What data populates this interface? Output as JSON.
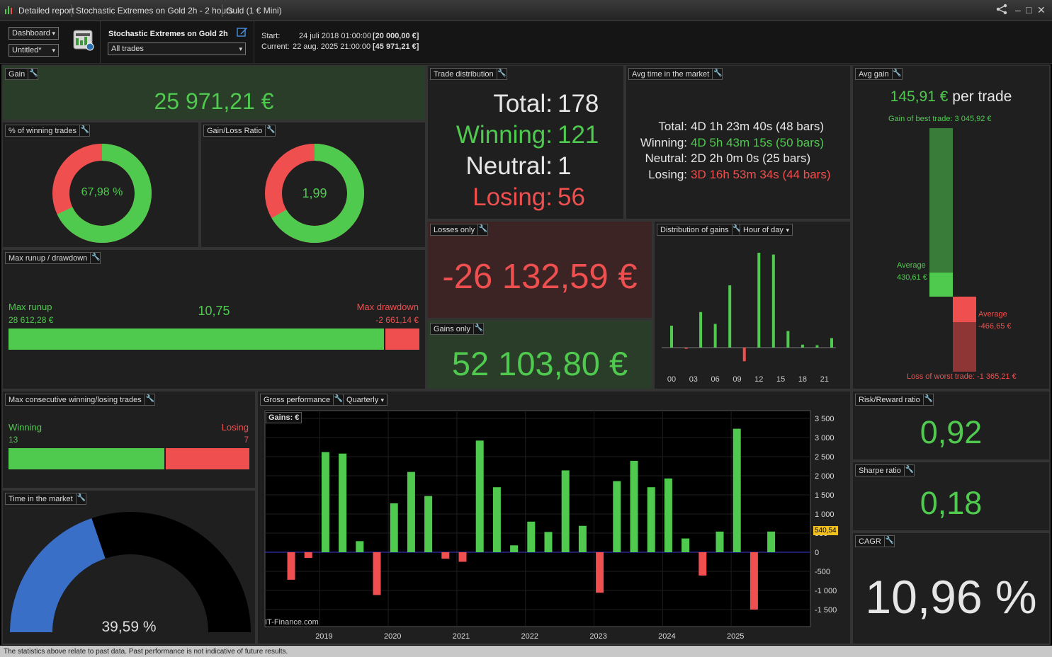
{
  "titlebar": {
    "tabs": [
      "Detailed report",
      "Stochastic Extremes on Gold 2h - 2 hours",
      "Guld (1 € Mini)"
    ],
    "icons": [
      "chart-app-icon",
      "share-icon",
      "minimize-icon",
      "maximize-icon",
      "close-icon"
    ]
  },
  "toolbar": {
    "view_select": "Dashboard",
    "layout_select": "Untitled*",
    "strategy_name": "Stochastic Extremes on Gold 2h",
    "trades_filter": "All trades",
    "start_label": "Start:",
    "start_date": "24 juli 2018 01:00:00",
    "start_value": "[20 000,00 €]",
    "current_label": "Current:",
    "current_date": "22 aug. 2025 21:00:00",
    "current_value": "[45 971,21 €]"
  },
  "gain": {
    "title": "Gain",
    "value": "25 971,21 €"
  },
  "winning_pct": {
    "title": "% of winning trades",
    "value": "67,98 %",
    "fraction": 0.6798
  },
  "gain_loss_ratio": {
    "title": "Gain/Loss Ratio",
    "value": "1,99",
    "fraction": 0.6656
  },
  "trade_distribution": {
    "title": "Trade distribution",
    "rows": [
      {
        "label": "Total:",
        "value": "178"
      },
      {
        "label": "Winning:",
        "value": "121"
      },
      {
        "label": "Neutral:",
        "value": "1"
      },
      {
        "label": "Losing:",
        "value": "56"
      }
    ]
  },
  "avg_time": {
    "title": "Avg time in the market",
    "rows": [
      {
        "label": "Total:",
        "value": "4D 1h 23m 40s (48 bars)"
      },
      {
        "label": "Winning:",
        "value": "4D 5h 43m 15s (50 bars)"
      },
      {
        "label": "Neutral:",
        "value": "2D 2h 0m 0s (25 bars)"
      },
      {
        "label": "Losing:",
        "value": "3D 16h 53m 34s (44 bars)"
      }
    ]
  },
  "avg_gain": {
    "title": "Avg gain",
    "value": "145,91 €",
    "suffix": "per trade",
    "best_label": "Gain of best trade: 3 045,92 €",
    "worst_label": "Loss of worst trade: -1 365,21 €",
    "avg_win_label": "Average",
    "avg_win_value": "430,61 €",
    "avg_loss_label": "Average",
    "avg_loss_value": "-466,65 €",
    "best": 3045.92,
    "avg_win": 430.61,
    "avg_loss": -466.65,
    "worst": -1365.21
  },
  "max_runup": {
    "title": "Max runup / drawdown",
    "runup_label": "Max runup",
    "runup_value": "28 612,28 €",
    "ratio": "10,75",
    "drawdown_label": "Max drawdown",
    "drawdown_value": "-2 661,14 €",
    "runup": 28612.28,
    "drawdown": 2661.14
  },
  "losses_only": {
    "title": "Losses only",
    "value": "-26 132,59 €"
  },
  "gains_only": {
    "title": "Gains only",
    "value": "52 103,80 €"
  },
  "distribution": {
    "title": "Distribution of gains",
    "mode_select": "Hour of day"
  },
  "max_consecutive": {
    "title": "Max consecutive winning/losing trades",
    "winning_label": "Winning",
    "winning_value": "13",
    "losing_label": "Losing",
    "losing_value": "7",
    "winning": 13,
    "losing": 7
  },
  "time_in_market": {
    "title": "Time in the market",
    "value": "39,59 %",
    "fraction": 0.3959
  },
  "gross_performance": {
    "title": "Gross performance",
    "period_select": "Quarterly",
    "gains_tag": "Gains: €",
    "watermark": "IT-Finance.com",
    "last_value_tag": "540,54"
  },
  "risk_reward": {
    "title": "Risk/Reward ratio",
    "value": "0,92"
  },
  "sharpe": {
    "title": "Sharpe ratio",
    "value": "0,18"
  },
  "cagr": {
    "title": "CAGR",
    "value": "10,96 %"
  },
  "footer": {
    "disclaimer": "The statistics above relate to past data. Past performance is not indicative of future results."
  },
  "colors": {
    "green": "#4fca4f",
    "red": "#ef4f4f",
    "blue": "#3a6fc8",
    "panel": "#1f1f1f"
  },
  "chart_data": [
    {
      "type": "bar",
      "title": "Distribution of gains",
      "categories": [
        "00",
        "01",
        "02",
        "03",
        "04",
        "05",
        "06",
        "07",
        "08",
        "09",
        "10",
        "11",
        "12",
        "13",
        "14",
        "15",
        "16",
        "17",
        "18",
        "19",
        "20",
        "21",
        "22"
      ],
      "tick_labels": [
        "00",
        "03",
        "06",
        "09",
        "12",
        "15",
        "18",
        "21"
      ],
      "values": [
        370,
        0,
        -20,
        0,
        600,
        0,
        400,
        0,
        1050,
        0,
        -230,
        0,
        1600,
        0,
        1570,
        0,
        280,
        0,
        50,
        0,
        40,
        0,
        160
      ]
    },
    {
      "type": "bar",
      "title": "Gross performance",
      "series_label": "Gains: €",
      "categories": [
        "2018Q3",
        "2018Q4",
        "2019Q1",
        "2019Q2",
        "2019Q3",
        "2019Q4",
        "2020Q1",
        "2020Q2",
        "2020Q3",
        "2020Q4",
        "2021Q1",
        "2021Q2",
        "2021Q3",
        "2021Q4",
        "2022Q1",
        "2022Q2",
        "2022Q3",
        "2022Q4",
        "2023Q1",
        "2023Q2",
        "2023Q3",
        "2023Q4",
        "2024Q1",
        "2024Q2",
        "2024Q3",
        "2024Q4",
        "2025Q1",
        "2025Q2",
        "2025Q3"
      ],
      "values": [
        -720,
        -150,
        2620,
        2580,
        290,
        -1120,
        1280,
        2100,
        1470,
        -170,
        -250,
        2920,
        1700,
        180,
        800,
        530,
        2140,
        690,
        -1060,
        1860,
        2390,
        1700,
        1930,
        360,
        -610,
        540,
        3230,
        -1500,
        540.54
      ],
      "year_ticks": [
        {
          "label": "2019",
          "index": 2
        },
        {
          "label": "2020",
          "index": 6
        },
        {
          "label": "2021",
          "index": 10
        },
        {
          "label": "2022",
          "index": 14
        },
        {
          "label": "2023",
          "index": 18
        },
        {
          "label": "2024",
          "index": 22
        },
        {
          "label": "2025",
          "index": 26
        }
      ],
      "y_ticks": [
        3500,
        3000,
        2500,
        2000,
        1500,
        1000,
        500,
        0,
        -500,
        -1000,
        -1500
      ],
      "y_tick_labels": [
        "3 500",
        "3 000",
        "2 500",
        "2 000",
        "1 500",
        "1 000",
        "500",
        "0",
        "-500",
        "-1 000",
        "-1 500"
      ],
      "ylim": [
        -2000,
        3700
      ]
    }
  ]
}
